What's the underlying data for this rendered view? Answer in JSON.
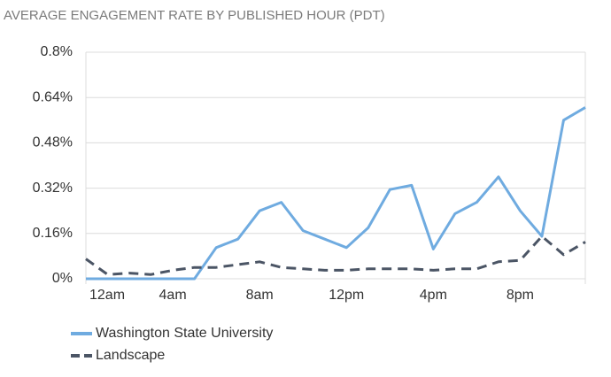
{
  "chart_data": {
    "type": "line",
    "title": "AVERAGE ENGAGEMENT RATE BY PUBLISHED HOUR (PDT)",
    "x": [
      0,
      1,
      2,
      3,
      4,
      5,
      6,
      7,
      8,
      9,
      10,
      11,
      12,
      13,
      14,
      15,
      16,
      17,
      18,
      19,
      20,
      21,
      22,
      23
    ],
    "xlim": [
      0,
      23
    ],
    "xticks": [
      {
        "value": 0,
        "label": "12am"
      },
      {
        "value": 4,
        "label": "4am"
      },
      {
        "value": 8,
        "label": "8am"
      },
      {
        "value": 12,
        "label": "12pm"
      },
      {
        "value": 16,
        "label": "4pm"
      },
      {
        "value": 20,
        "label": "8pm"
      }
    ],
    "ylim": [
      0,
      0.8
    ],
    "yticks": [
      {
        "value": 0,
        "label": "0%"
      },
      {
        "value": 0.16,
        "label": "0.16%"
      },
      {
        "value": 0.32,
        "label": "0.32%"
      },
      {
        "value": 0.48,
        "label": "0.48%"
      },
      {
        "value": 0.64,
        "label": "0.64%"
      },
      {
        "value": 0.8,
        "label": "0.8%"
      }
    ],
    "grid": true,
    "legend": "bottom-left",
    "series": [
      {
        "name": "Washington State University",
        "color": "#6fabe0",
        "dash": false,
        "values": [
          0,
          0,
          0,
          0,
          0,
          0,
          0.11,
          0.14,
          0.24,
          0.27,
          0.17,
          0.14,
          0.11,
          0.18,
          0.315,
          0.33,
          0.105,
          0.23,
          0.27,
          0.36,
          0.24,
          0.15,
          0.56,
          0.605
        ]
      },
      {
        "name": "Landscape",
        "color": "#4b5565",
        "dash": true,
        "values": [
          0.07,
          0.015,
          0.02,
          0.015,
          0.03,
          0.04,
          0.04,
          0.05,
          0.06,
          0.04,
          0.035,
          0.03,
          0.03,
          0.035,
          0.035,
          0.035,
          0.03,
          0.035,
          0.035,
          0.06,
          0.065,
          0.15,
          0.085,
          0.13
        ]
      }
    ]
  }
}
